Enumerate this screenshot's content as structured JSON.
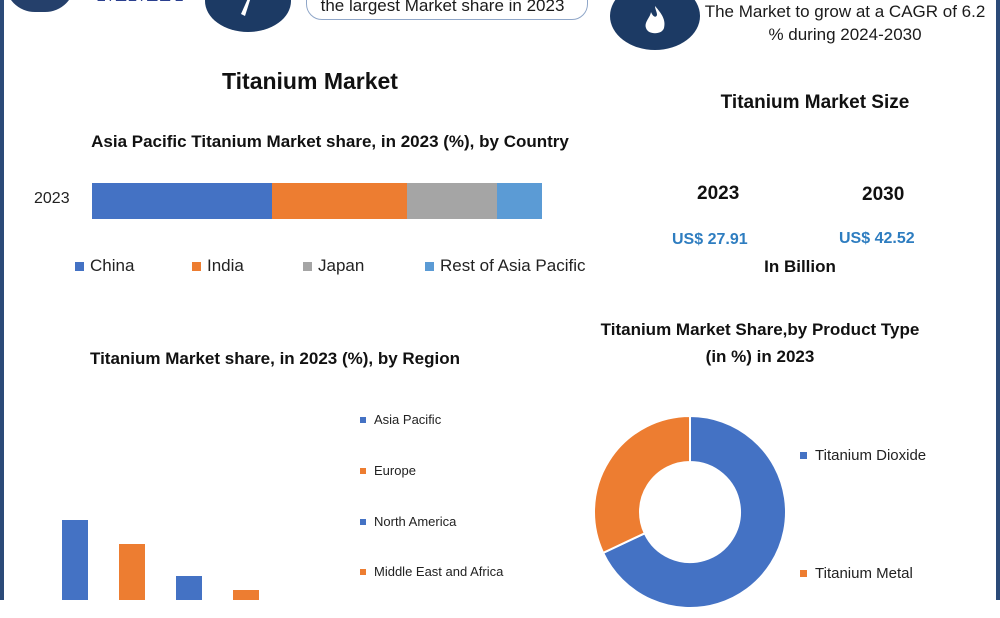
{
  "header": {
    "logo_text": "MMR",
    "headline_left": "the largest Market share in 2023",
    "headline_right": "The Market to grow at a CAGR of 6.2 % during 2024-2030",
    "icon_left": "pen-icon",
    "icon_right": "flame-icon"
  },
  "title_main": "Titanium Market",
  "market_size": {
    "title": "Titanium Market Size",
    "year_a": "2023",
    "year_b": "2030",
    "value_a": "US$ 27.91",
    "value_b": "US$ 42.52",
    "unit": "In Billion"
  },
  "colors": {
    "blue": "#4472c4",
    "orange": "#ed7d31",
    "gray": "#a5a5a5",
    "lightblue": "#5b9bd5",
    "navy": "#1c3a64",
    "accent": "#2e7dc0"
  },
  "chart_data": [
    {
      "type": "bar",
      "orientation": "horizontal-stacked",
      "title": "Asia Pacific Titanium Market share, in 2023 (%), by Country",
      "categories": [
        "2023"
      ],
      "series": [
        {
          "name": "China",
          "values": [
            40
          ],
          "color": "#4472c4"
        },
        {
          "name": "India",
          "values": [
            30
          ],
          "color": "#ed7d31"
        },
        {
          "name": "Japan",
          "values": [
            20
          ],
          "color": "#a5a5a5"
        },
        {
          "name": "Rest of Asia Pacific",
          "values": [
            10
          ],
          "color": "#5b9bd5"
        }
      ],
      "legend": "bottom"
    },
    {
      "type": "bar",
      "title": "Titanium  Market share, in 2023 (%), by Region",
      "categories": [
        "Asia Pacific",
        "Europe",
        "North America",
        "Middle East and Africa"
      ],
      "values": [
        40,
        28,
        12,
        5
      ],
      "colors": [
        "#4472c4",
        "#ed7d31",
        "#4472c4",
        "#ed7d31"
      ],
      "ylim": [
        0,
        100
      ],
      "legend": "right"
    },
    {
      "type": "pie",
      "style": "donut",
      "title": "Titanium Market Share,by Product Type (in %) in 2023",
      "slices": [
        {
          "name": "Titanium Dioxide",
          "value": 68,
          "color": "#4472c4"
        },
        {
          "name": "Titanium Metal",
          "value": 32,
          "color": "#ed7d31"
        }
      ],
      "legend": "right"
    }
  ]
}
